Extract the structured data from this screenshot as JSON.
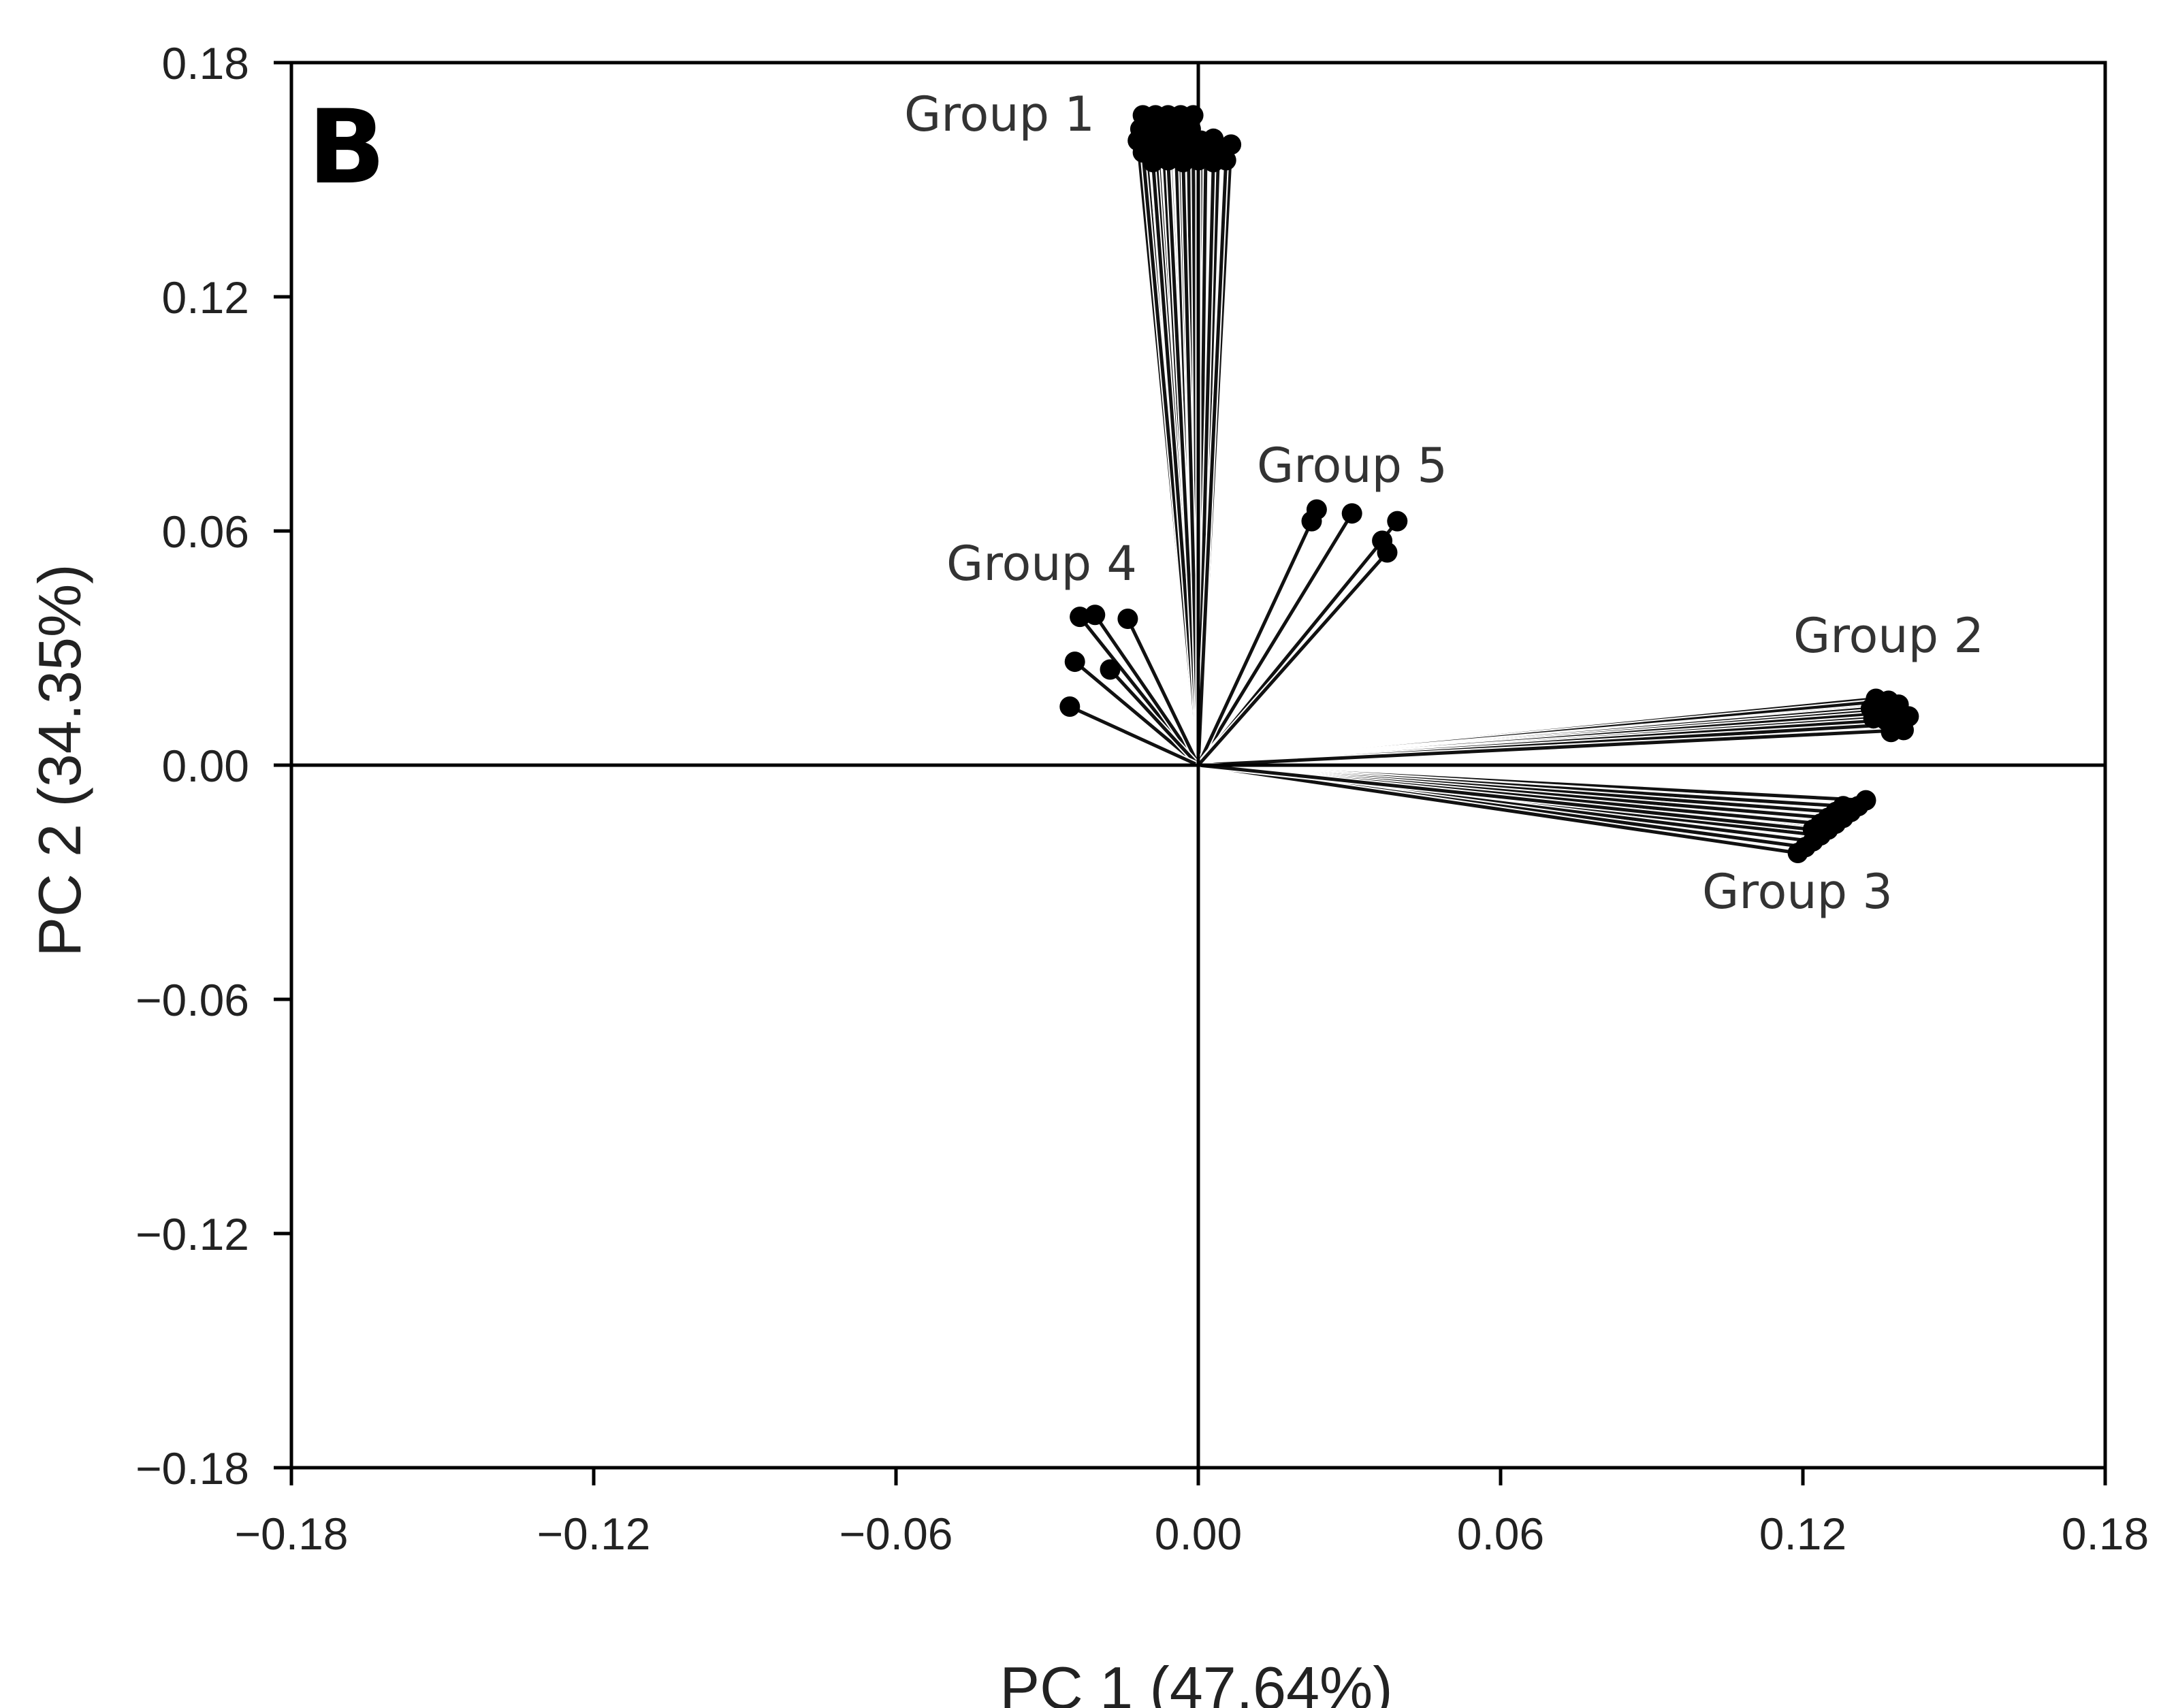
{
  "panel_label": "B",
  "chart_data": {
    "type": "scatter",
    "subtype": "pca-loading-biplot",
    "title": "",
    "xlabel": "PC 1 (47.64%)",
    "ylabel": "PC 2 (34.35%)",
    "xlim": [
      -0.18,
      0.18
    ],
    "ylim": [
      -0.18,
      0.18
    ],
    "x_ticks": [
      -0.18,
      -0.12,
      -0.06,
      0.0,
      0.06,
      0.12,
      0.18
    ],
    "y_ticks": [
      -0.18,
      -0.12,
      -0.06,
      0.0,
      0.06,
      0.12,
      0.18
    ],
    "x_tick_labels": [
      "−0.18",
      "−0.12",
      "−0.06",
      "0.00",
      "0.06",
      "0.12",
      "0.18"
    ],
    "y_tick_labels": [
      "−0.18",
      "−0.12",
      "−0.06",
      "0.00",
      "0.06",
      "0.12",
      "0.18"
    ],
    "zero_lines": true,
    "grid": false,
    "vectors_from_origin": true,
    "series": [
      {
        "name": "Group 1",
        "points": [
          [
            -0.011,
            0.1665
          ],
          [
            -0.0085,
            0.1665
          ],
          [
            -0.006,
            0.1665
          ],
          [
            -0.0035,
            0.1665
          ],
          [
            -0.001,
            0.1665
          ],
          [
            -0.0115,
            0.163
          ],
          [
            -0.009,
            0.1635
          ],
          [
            -0.0065,
            0.163
          ],
          [
            -0.004,
            0.1635
          ],
          [
            -0.0015,
            0.163
          ],
          [
            -0.012,
            0.16
          ],
          [
            -0.0095,
            0.16
          ],
          [
            -0.007,
            0.1605
          ],
          [
            -0.0045,
            0.16
          ],
          [
            -0.002,
            0.1605
          ],
          [
            0.0005,
            0.16
          ],
          [
            0.003,
            0.1605
          ],
          [
            -0.011,
            0.157
          ],
          [
            -0.0085,
            0.1575
          ],
          [
            -0.006,
            0.157
          ],
          [
            -0.0035,
            0.1575
          ],
          [
            -0.001,
            0.157
          ],
          [
            0.0015,
            0.1575
          ],
          [
            0.004,
            0.157
          ],
          [
            0.0065,
            0.159
          ],
          [
            -0.009,
            0.1545
          ],
          [
            -0.006,
            0.155
          ],
          [
            -0.003,
            0.1545
          ],
          [
            0.0,
            0.155
          ],
          [
            0.003,
            0.1545
          ],
          [
            0.0055,
            0.155
          ]
        ]
      },
      {
        "name": "Group 2",
        "points": [
          [
            0.1345,
            0.017
          ],
          [
            0.137,
            0.0165
          ],
          [
            0.139,
            0.0155
          ],
          [
            0.1335,
            0.0145
          ],
          [
            0.136,
            0.014
          ],
          [
            0.1385,
            0.0135
          ],
          [
            0.141,
            0.0125
          ],
          [
            0.134,
            0.012
          ],
          [
            0.1365,
            0.0115
          ],
          [
            0.139,
            0.0105
          ],
          [
            0.1375,
            0.0085
          ],
          [
            0.14,
            0.009
          ]
        ]
      },
      {
        "name": "Group 3",
        "points": [
          [
            0.1325,
            -0.009
          ],
          [
            0.131,
            -0.0105
          ],
          [
            0.1295,
            -0.012
          ],
          [
            0.128,
            -0.0135
          ],
          [
            0.1265,
            -0.015
          ],
          [
            0.125,
            -0.0165
          ],
          [
            0.1235,
            -0.018
          ],
          [
            0.122,
            -0.0195
          ],
          [
            0.1205,
            -0.021
          ],
          [
            0.119,
            -0.0225
          ],
          [
            0.128,
            -0.0105
          ],
          [
            0.1265,
            -0.012
          ],
          [
            0.125,
            -0.0135
          ],
          [
            0.1235,
            -0.015
          ],
          [
            0.122,
            -0.0165
          ]
        ]
      },
      {
        "name": "Group 4",
        "points": [
          [
            -0.0235,
            0.038
          ],
          [
            -0.0205,
            0.0385
          ],
          [
            -0.014,
            0.0375
          ],
          [
            -0.0245,
            0.0265
          ],
          [
            -0.0175,
            0.0245
          ],
          [
            -0.0255,
            0.015
          ]
        ]
      },
      {
        "name": "Group 5",
        "points": [
          [
            0.0235,
            0.0655
          ],
          [
            0.0305,
            0.0645
          ],
          [
            0.0395,
            0.0625
          ],
          [
            0.0225,
            0.0625
          ],
          [
            0.0365,
            0.0575
          ],
          [
            0.0375,
            0.0545
          ]
        ]
      }
    ],
    "annotations": [
      "Group 1",
      "Group 2",
      "Group 3",
      "Group 4",
      "Group 5"
    ]
  }
}
